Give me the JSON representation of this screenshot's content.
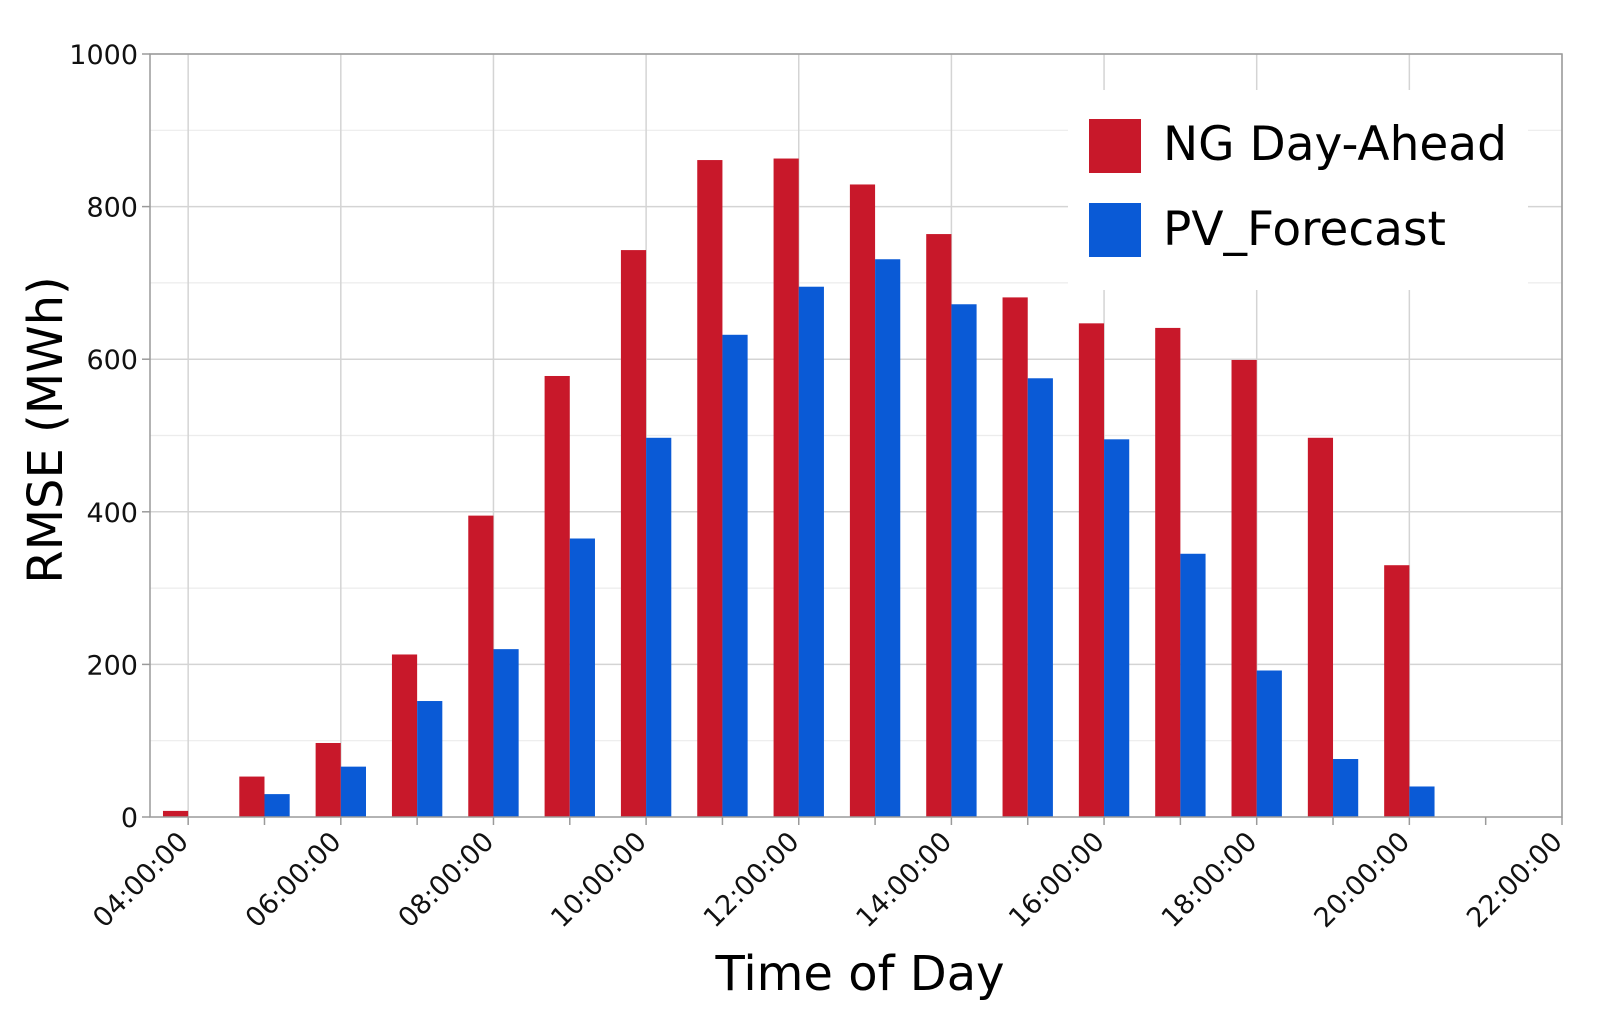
{
  "chart_data": {
    "type": "bar",
    "xlabel": "Time of Day",
    "ylabel": "RMSE (MWh)",
    "ylim": [
      0,
      1000
    ],
    "yticks": [
      0,
      200,
      400,
      600,
      800,
      1000
    ],
    "x_tick_labels": [
      "04:00:00",
      "06:00:00",
      "08:00:00",
      "10:00:00",
      "12:00:00",
      "14:00:00",
      "16:00:00",
      "18:00:00",
      "20:00:00",
      "22:00:00"
    ],
    "x_hours_range": [
      3.5,
      22
    ],
    "grid": true,
    "legend_position": "top-right",
    "categories": [
      "04:00:00",
      "05:00:00",
      "06:00:00",
      "07:00:00",
      "08:00:00",
      "09:00:00",
      "10:00:00",
      "11:00:00",
      "12:00:00",
      "13:00:00",
      "14:00:00",
      "15:00:00",
      "16:00:00",
      "17:00:00",
      "18:00:00",
      "19:00:00",
      "20:00:00"
    ],
    "series": [
      {
        "name": "NG Day-Ahead",
        "color": "#c8182a",
        "values": [
          8,
          53,
          97,
          213,
          395,
          578,
          743,
          861,
          863,
          829,
          764,
          681,
          647,
          641,
          599,
          497,
          330
        ]
      },
      {
        "name": "PV_Forecast",
        "color": "#0a5ad6",
        "values": [
          0,
          30,
          66,
          152,
          220,
          365,
          497,
          632,
          695,
          731,
          672,
          575,
          495,
          345,
          192,
          76,
          40
        ]
      }
    ]
  }
}
